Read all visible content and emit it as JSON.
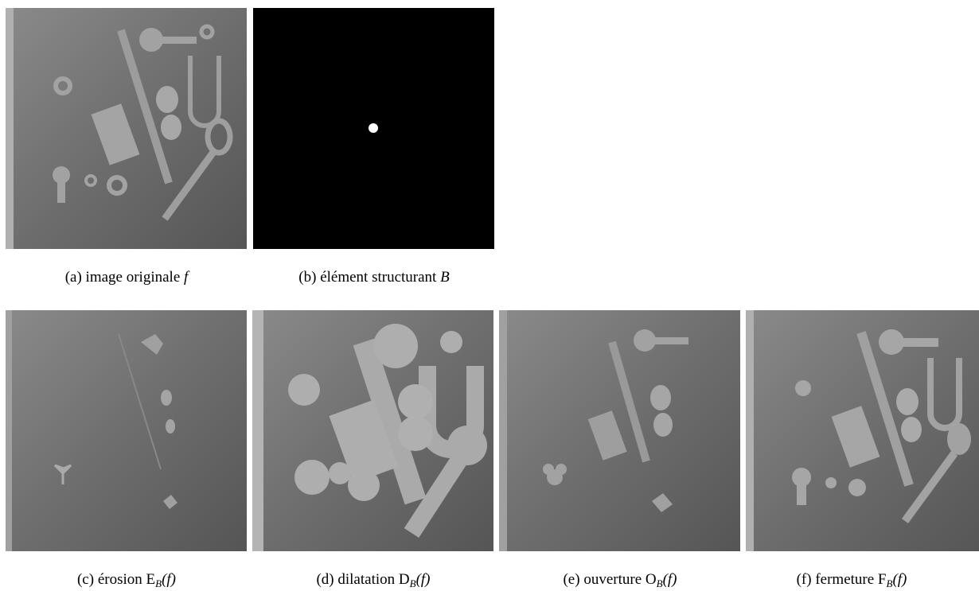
{
  "figures": [
    {
      "label": "(a)",
      "text": "image originale",
      "math": "f"
    },
    {
      "label": "(b)",
      "text": "élément structurant",
      "math": "B"
    },
    {
      "label": "(c)",
      "text": "érosion",
      "op": "E",
      "sub": "B",
      "arg": "(f)"
    },
    {
      "label": "(d)",
      "text": "dilatation",
      "op": "D",
      "sub": "B",
      "arg": "(f)"
    },
    {
      "label": "(e)",
      "text": "ouverture",
      "op": "O",
      "sub": "B",
      "arg": "(f)"
    },
    {
      "label": "(f)",
      "text": "fermeture",
      "op": "F",
      "sub": "B",
      "arg": "(f)"
    }
  ]
}
